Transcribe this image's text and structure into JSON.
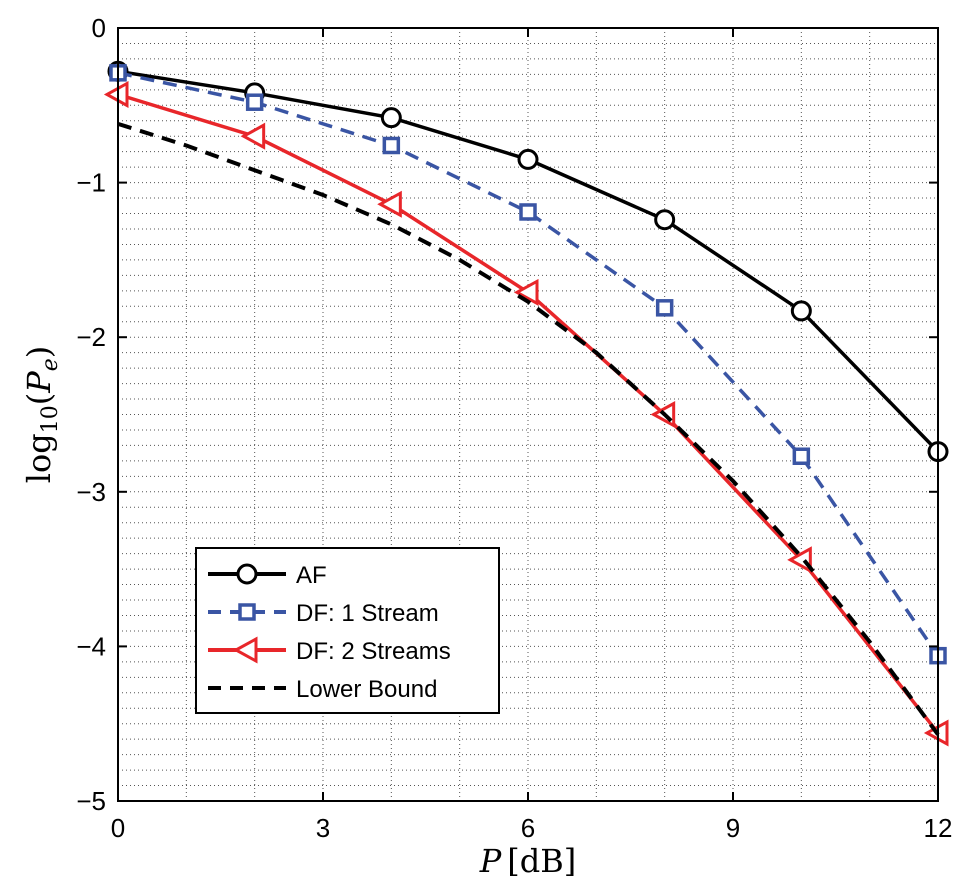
{
  "chart_data": {
    "type": "line",
    "title": "",
    "xlabel": {
      "var": "P",
      "unit": "[dB]"
    },
    "ylabel": {
      "text": "log",
      "sub": "10",
      "arg_open": "(",
      "var": "P",
      "var_sub": "e",
      "arg_close": ")"
    },
    "xlim": [
      0,
      12
    ],
    "ylim": [
      -5,
      0
    ],
    "xticks": [
      0,
      3,
      6,
      9,
      12
    ],
    "xtick_labels": [
      "0",
      "3",
      "6",
      "9",
      "12"
    ],
    "yticks": [
      0,
      -1,
      -2,
      -3,
      -4,
      -5
    ],
    "ytick_labels": [
      "0",
      "−1",
      "−2",
      "−3",
      "−4",
      "−5"
    ],
    "grid": true,
    "legend_position": "lower-left",
    "series": [
      {
        "name": "AF",
        "color": "#000000",
        "dash": "solid",
        "marker": "circle",
        "x": [
          0,
          2,
          4,
          6,
          8,
          10,
          12
        ],
        "y": [
          -0.28,
          -0.42,
          -0.58,
          -0.85,
          -1.24,
          -1.83,
          -2.74
        ]
      },
      {
        "name": "DF: 1 Stream",
        "color": "#3a55a4",
        "dash": "dashed",
        "marker": "square",
        "x": [
          0,
          2,
          4,
          6,
          8,
          10,
          12
        ],
        "y": [
          -0.29,
          -0.48,
          -0.76,
          -1.19,
          -1.81,
          -2.77,
          -4.06
        ]
      },
      {
        "name": "DF: 2 Streams",
        "color": "#e8262a",
        "dash": "solid",
        "marker": "triangle-left",
        "x": [
          0,
          2,
          4,
          6,
          8,
          10,
          12
        ],
        "y": [
          -0.43,
          -0.7,
          -1.14,
          -1.71,
          -2.5,
          -3.44,
          -4.56
        ]
      },
      {
        "name": "Lower Bound",
        "color": "#000000",
        "dash": "dashed",
        "marker": "none",
        "x": [
          0,
          1,
          2,
          3,
          4,
          5,
          6,
          7,
          8,
          9,
          10,
          11,
          12
        ],
        "y": [
          -0.62,
          -0.76,
          -0.92,
          -1.08,
          -1.27,
          -1.5,
          -1.77,
          -2.1,
          -2.5,
          -2.93,
          -3.42,
          -3.97,
          -4.57
        ]
      }
    ]
  }
}
